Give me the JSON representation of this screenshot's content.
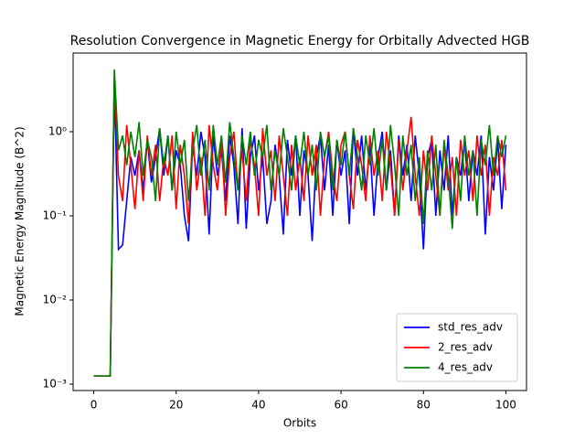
{
  "chart_data": {
    "type": "line",
    "title": "Resolution Convergence in Magnetic Energy for Orbitally Advected HGB",
    "xlabel": "Orbits",
    "ylabel": "Magnetic Energy Magnitude (B^2)",
    "ylog": true,
    "legend": "lower right",
    "xlim": [
      -5,
      105
    ],
    "ylim": [
      0.00084,
      8.6
    ],
    "xticks": [
      0,
      20,
      40,
      60,
      80,
      100
    ],
    "yticks": [
      {
        "value": 0.001,
        "label": "10⁻³"
      },
      {
        "value": 0.01,
        "label": "10⁻²"
      },
      {
        "value": 0.1,
        "label": "10⁻¹"
      },
      {
        "value": 1,
        "label": "10⁰"
      }
    ],
    "x": [
      0,
      1,
      2,
      3,
      4,
      5,
      6,
      7,
      8,
      9,
      10,
      11,
      12,
      13,
      14,
      15,
      16,
      17,
      18,
      19,
      20,
      21,
      22,
      23,
      24,
      25,
      26,
      27,
      28,
      29,
      30,
      31,
      32,
      33,
      34,
      35,
      36,
      37,
      38,
      39,
      40,
      41,
      42,
      43,
      44,
      45,
      46,
      47,
      48,
      49,
      50,
      51,
      52,
      53,
      54,
      55,
      56,
      57,
      58,
      59,
      60,
      61,
      62,
      63,
      64,
      65,
      66,
      67,
      68,
      69,
      70,
      71,
      72,
      73,
      74,
      75,
      76,
      77,
      78,
      79,
      80,
      81,
      82,
      83,
      84,
      85,
      86,
      87,
      88,
      89,
      90,
      91,
      92,
      93,
      94,
      95,
      96,
      97,
      98,
      99,
      100
    ],
    "series": [
      {
        "name": "std_res_adv",
        "color": "#0000ff",
        "values": [
          0.00125,
          0.00125,
          0.00125,
          0.00125,
          0.00125,
          4.0,
          0.04,
          0.045,
          0.15,
          0.5,
          0.3,
          0.6,
          0.2,
          0.8,
          0.25,
          0.5,
          1.1,
          0.3,
          0.9,
          0.2,
          0.6,
          0.4,
          0.1,
          0.05,
          0.7,
          0.3,
          1.0,
          0.5,
          0.06,
          0.9,
          0.3,
          0.6,
          0.15,
          0.9,
          0.4,
          0.08,
          1.1,
          0.07,
          0.5,
          0.9,
          0.2,
          0.5,
          0.08,
          0.15,
          0.7,
          0.3,
          0.06,
          0.8,
          0.3,
          0.9,
          0.1,
          0.6,
          0.3,
          0.05,
          0.5,
          0.9,
          0.2,
          0.7,
          0.1,
          0.8,
          0.3,
          0.6,
          0.08,
          1.1,
          0.3,
          0.9,
          0.2,
          0.7,
          0.1,
          0.5,
          1.0,
          0.2,
          0.6,
          0.1,
          0.9,
          0.3,
          0.7,
          0.15,
          0.9,
          0.3,
          0.04,
          0.5,
          0.8,
          0.1,
          0.6,
          0.2,
          0.9,
          0.1,
          0.5,
          0.3,
          0.8,
          0.15,
          0.6,
          0.3,
          0.9,
          0.06,
          0.5,
          0.2,
          0.8,
          0.12,
          0.7
        ]
      },
      {
        "name": "2_res_adv",
        "color": "#ff0000",
        "values": [
          0.00125,
          0.00125,
          0.00125,
          0.00125,
          0.00125,
          4.5,
          0.3,
          0.15,
          1.2,
          0.4,
          0.12,
          0.6,
          0.15,
          0.9,
          0.3,
          0.7,
          0.15,
          0.5,
          0.3,
          0.9,
          0.12,
          0.7,
          0.3,
          0.08,
          1.0,
          0.2,
          0.5,
          0.1,
          1.2,
          0.4,
          0.2,
          0.8,
          0.1,
          0.5,
          1.0,
          0.2,
          0.6,
          0.15,
          0.8,
          0.4,
          0.1,
          1.1,
          0.3,
          0.6,
          0.15,
          0.9,
          0.3,
          0.1,
          0.7,
          0.2,
          0.5,
          0.15,
          0.9,
          0.3,
          0.7,
          0.1,
          0.5,
          1.0,
          0.3,
          0.15,
          0.7,
          1.0,
          0.3,
          0.12,
          0.8,
          0.4,
          0.15,
          0.9,
          0.3,
          0.6,
          0.15,
          1.0,
          0.4,
          0.1,
          0.8,
          0.2,
          0.6,
          1.5,
          0.3,
          0.1,
          0.6,
          0.2,
          0.9,
          0.3,
          0.1,
          0.7,
          0.2,
          0.5,
          0.1,
          0.8,
          0.3,
          0.6,
          0.15,
          0.9,
          0.3,
          0.7,
          0.1,
          0.5,
          0.3,
          0.8,
          0.2
        ]
      },
      {
        "name": "4_res_adv",
        "color": "#008000",
        "values": [
          0.00125,
          0.00125,
          0.00125,
          0.00125,
          0.00125,
          5.5,
          0.6,
          0.9,
          0.4,
          1.0,
          0.5,
          1.3,
          0.3,
          0.8,
          0.5,
          0.15,
          1.1,
          0.4,
          0.9,
          0.2,
          1.0,
          0.4,
          0.8,
          0.15,
          0.6,
          1.2,
          0.3,
          0.8,
          0.2,
          1.2,
          0.4,
          0.9,
          0.25,
          1.3,
          0.5,
          0.2,
          0.9,
          0.4,
          1.0,
          0.3,
          0.8,
          0.5,
          1.2,
          0.2,
          0.6,
          0.3,
          1.1,
          0.5,
          0.2,
          0.9,
          0.4,
          1.0,
          0.3,
          0.7,
          0.2,
          1.0,
          0.5,
          0.9,
          0.2,
          0.8,
          0.4,
          1.0,
          0.3,
          1.1,
          0.5,
          0.2,
          0.9,
          0.4,
          1.1,
          0.3,
          0.8,
          0.2,
          1.2,
          0.4,
          0.1,
          0.9,
          0.3,
          0.7,
          0.15,
          0.5,
          0.08,
          0.6,
          0.2,
          0.7,
          0.1,
          0.8,
          0.3,
          0.07,
          0.5,
          0.15,
          0.9,
          0.3,
          0.6,
          0.1,
          0.8,
          0.4,
          1.2,
          0.3,
          0.9,
          0.5,
          0.9
        ]
      }
    ]
  }
}
